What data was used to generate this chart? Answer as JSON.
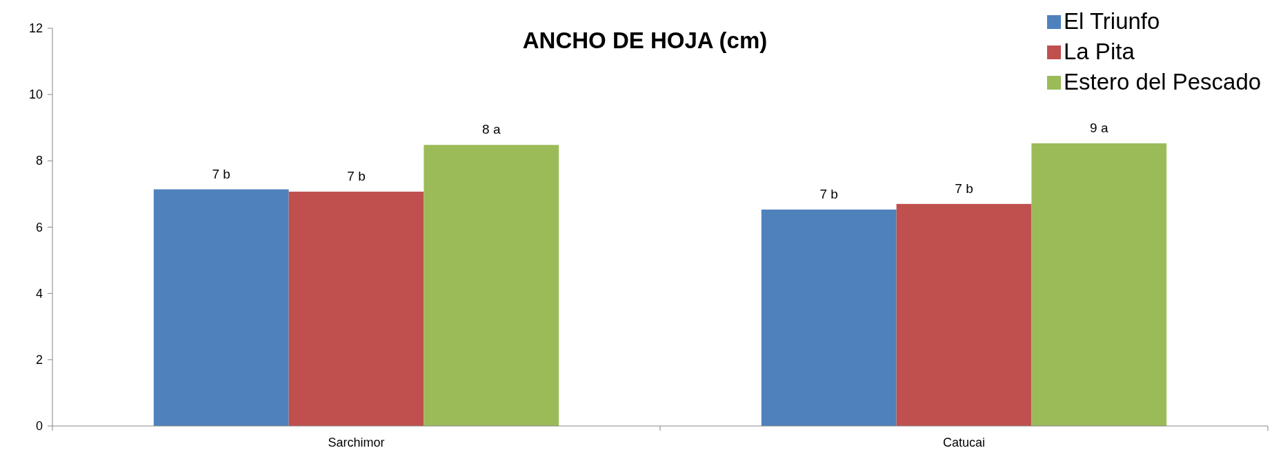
{
  "chart_data": {
    "type": "bar",
    "title": "ANCHO DE HOJA (cm)",
    "categories": [
      "Sarchimor",
      "Catucai"
    ],
    "series": [
      {
        "name": "El Triunfo",
        "color": "#4f81bd",
        "values": [
          7.14,
          6.53
        ],
        "value_labels": [
          "7 b",
          "7 b"
        ]
      },
      {
        "name": "La Pita",
        "color": "#c0504d",
        "values": [
          7.07,
          6.7
        ],
        "value_labels": [
          "7 b",
          "7 b"
        ]
      },
      {
        "name": "Estero del Pescado",
        "color": "#9bbb59",
        "values": [
          8.48,
          8.53
        ],
        "value_labels": [
          "8 a",
          "9 a"
        ]
      }
    ],
    "ylim": [
      0,
      12
    ],
    "yticks": [
      0,
      2,
      4,
      6,
      8,
      10,
      12
    ],
    "grid": false,
    "legend": "top right"
  }
}
